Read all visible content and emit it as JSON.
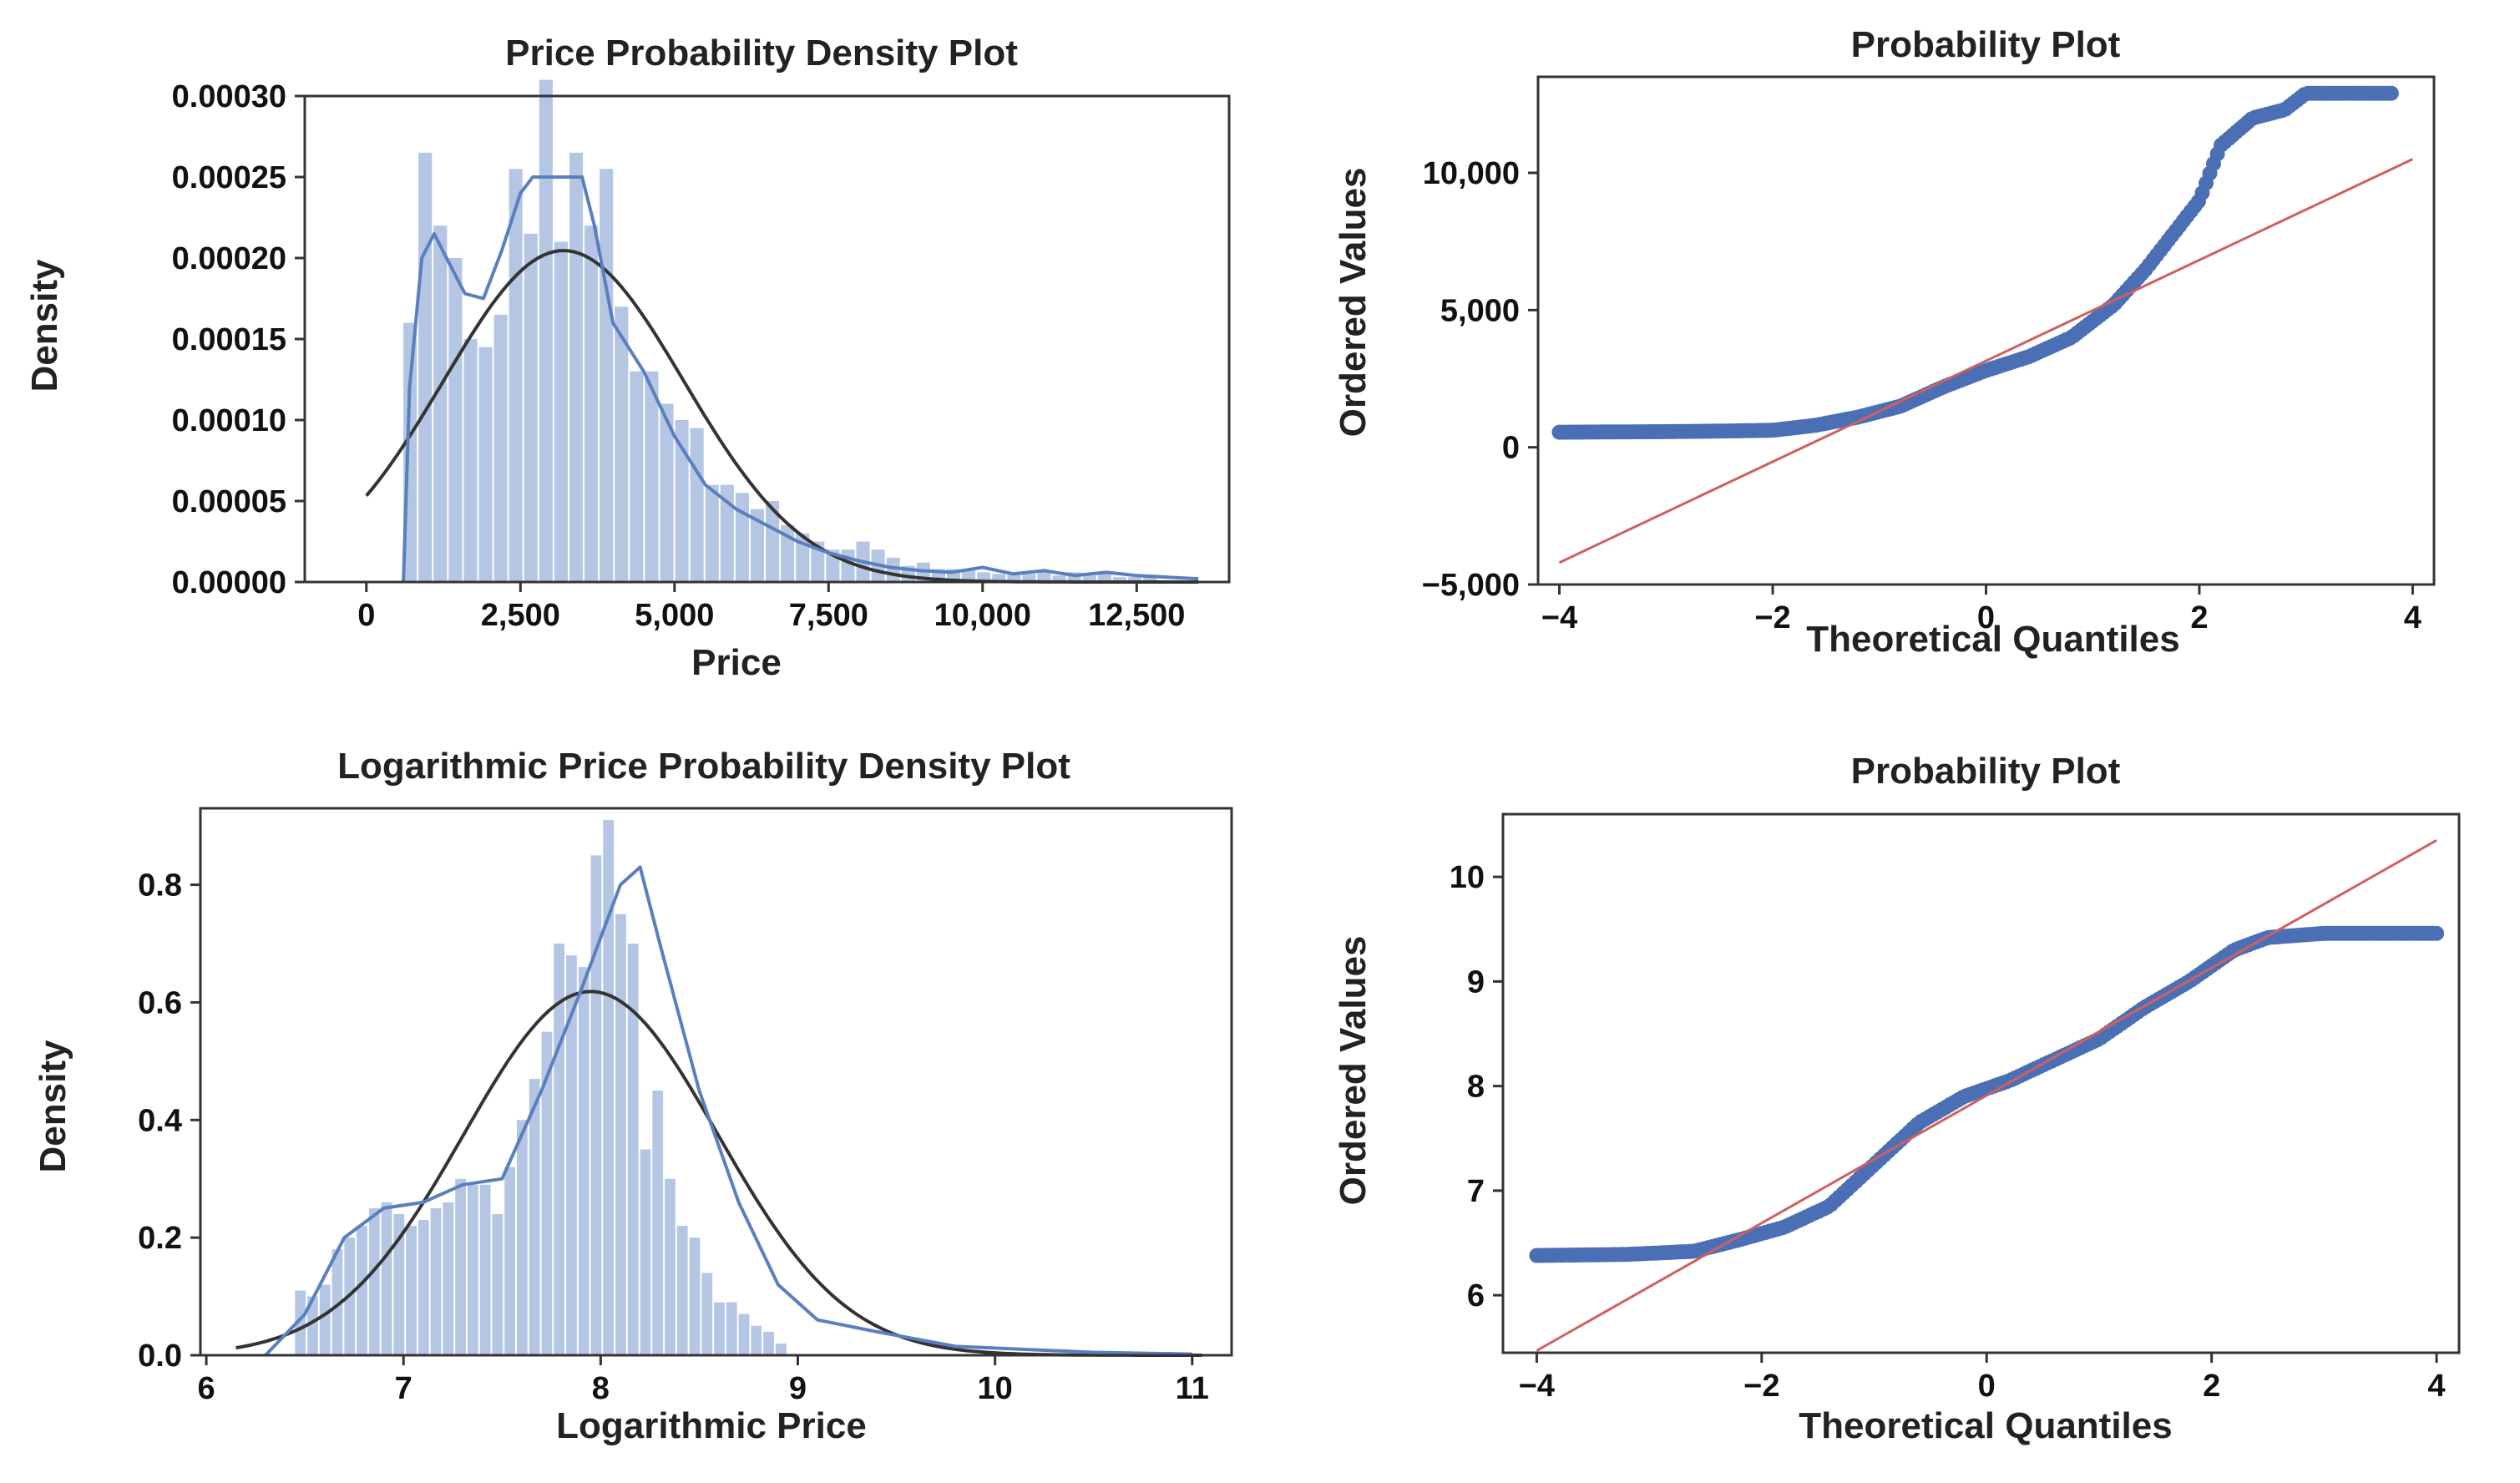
{
  "colors": {
    "hist": "#b4c6e3",
    "kde": "#5a7fbf",
    "normal": "#333333",
    "points": "#4a6fb5",
    "refline": "#d06060"
  },
  "chart_data": [
    {
      "id": "price-density",
      "type": "bar",
      "title": "Price Probability Density Plot",
      "xlabel": "Price",
      "ylabel": "Density",
      "xlim": [
        -1000,
        14000
      ],
      "ylim": [
        0,
        0.0003
      ],
      "xticks": [
        0,
        2500,
        5000,
        7500,
        10000,
        12500
      ],
      "xtick_labels": [
        "0",
        "2,500",
        "5,000",
        "7,500",
        "10,000",
        "12,500"
      ],
      "yticks": [
        0,
        5e-05,
        0.0001,
        0.00015,
        0.0002,
        0.00025,
        0.0003
      ],
      "ytick_labels": [
        "0.00000",
        "0.00005",
        "0.00010",
        "0.00015",
        "0.00020",
        "0.00025",
        "0.00030"
      ],
      "hist_start": 600,
      "bin_width": 245,
      "values": [
        0.00016,
        0.000265,
        0.00022,
        0.0002,
        0.00015,
        0.000145,
        0.000165,
        0.000255,
        0.000215,
        0.00031,
        0.00021,
        0.000265,
        0.00022,
        0.000255,
        0.00017,
        0.00013,
        0.00013,
        0.00011,
        0.0001,
        9.5e-05,
        6e-05,
        6e-05,
        5.5e-05,
        4.5e-05,
        5e-05,
        3.5e-05,
        3e-05,
        2.5e-05,
        2e-05,
        2e-05,
        2.5e-05,
        2e-05,
        1.5e-05,
        1e-05,
        1.2e-05,
        8e-06,
        8e-06,
        8e-06,
        6e-06,
        5e-06,
        6e-06,
        5e-06,
        6e-06,
        4e-06,
        6e-06,
        4e-06,
        5e-06,
        3e-06,
        3e-06,
        3e-06
      ],
      "kde": [
        [
          600,
          0.0
        ],
        [
          700,
          0.00012
        ],
        [
          900,
          0.0002
        ],
        [
          1100,
          0.000215
        ],
        [
          1300,
          0.0002
        ],
        [
          1600,
          0.000178
        ],
        [
          1900,
          0.000175
        ],
        [
          2200,
          0.000205
        ],
        [
          2500,
          0.00024
        ],
        [
          2700,
          0.00025
        ],
        [
          3000,
          0.00025
        ],
        [
          3500,
          0.00025
        ],
        [
          3700,
          0.00022
        ],
        [
          4000,
          0.00016
        ],
        [
          4500,
          0.00013
        ],
        [
          5000,
          9e-05
        ],
        [
          5500,
          6e-05
        ],
        [
          6000,
          4.5e-05
        ],
        [
          6500,
          3.5e-05
        ],
        [
          7000,
          2.5e-05
        ],
        [
          7500,
          1.8e-05
        ],
        [
          8000,
          1.3e-05
        ],
        [
          8500,
          9e-06
        ],
        [
          9000,
          7e-06
        ],
        [
          9500,
          6e-06
        ],
        [
          10000,
          9e-06
        ],
        [
          10500,
          5e-06
        ],
        [
          11000,
          7e-06
        ],
        [
          11500,
          4e-06
        ],
        [
          12000,
          6e-06
        ],
        [
          12500,
          4e-06
        ],
        [
          13000,
          3e-06
        ],
        [
          13500,
          2e-06
        ]
      ],
      "normal_fit": {
        "mean": 3200,
        "std": 1950,
        "x_range": [
          0,
          13500
        ]
      }
    },
    {
      "id": "price-qq",
      "type": "scatter",
      "title": "Probability Plot",
      "xlabel": "Theoretical Quantiles",
      "ylabel": "Ordered Values",
      "xlim": [
        -4.2,
        4.2
      ],
      "ylim": [
        -5000,
        13500
      ],
      "xticks": [
        -4,
        -2,
        0,
        2,
        4
      ],
      "xtick_labels": [
        "−4",
        "−2",
        "0",
        "2",
        "4"
      ],
      "yticks": [
        -5000,
        0,
        5000,
        10000
      ],
      "ytick_labels": [
        "−5,000",
        "0",
        "5,000",
        "10,000"
      ],
      "quantile_curve": [
        [
          -4.0,
          550
        ],
        [
          -3.0,
          570
        ],
        [
          -2.5,
          590
        ],
        [
          -2.0,
          620
        ],
        [
          -1.6,
          800
        ],
        [
          -1.2,
          1100
        ],
        [
          -0.8,
          1500
        ],
        [
          -0.4,
          2200
        ],
        [
          0.0,
          2800
        ],
        [
          0.4,
          3300
        ],
        [
          0.8,
          4000
        ],
        [
          1.2,
          5200
        ],
        [
          1.5,
          6500
        ],
        [
          1.8,
          8000
        ],
        [
          2.0,
          9000
        ],
        [
          2.2,
          11000
        ],
        [
          2.5,
          12000
        ],
        [
          2.8,
          12300
        ],
        [
          3.0,
          12900
        ],
        [
          3.8,
          12900
        ]
      ],
      "reference_line": [
        [
          -4.0,
          -4200
        ],
        [
          4.0,
          10500
        ]
      ]
    },
    {
      "id": "log-density",
      "type": "bar",
      "title": "Logarithmic Price Probability Density Plot",
      "xlabel": "Logarithmic Price",
      "ylabel": "Density",
      "xlim": [
        5.97,
        11.2
      ],
      "ylim": [
        0,
        0.93
      ],
      "xticks": [
        6,
        7,
        8,
        9,
        10,
        11
      ],
      "xtick_labels": [
        "6",
        "7",
        "8",
        "9",
        "10",
        "11"
      ],
      "yticks": [
        0,
        0.2,
        0.4,
        0.6,
        0.8
      ],
      "ytick_labels": [
        "0.0",
        "0.2",
        "0.4",
        "0.6",
        "0.8"
      ],
      "hist_start": 6.45,
      "bin_width": 0.0625,
      "values": [
        0.11,
        0.1,
        0.12,
        0.18,
        0.2,
        0.22,
        0.25,
        0.26,
        0.24,
        0.22,
        0.23,
        0.25,
        0.26,
        0.3,
        0.29,
        0.29,
        0.24,
        0.32,
        0.4,
        0.47,
        0.55,
        0.7,
        0.68,
        0.66,
        0.85,
        0.91,
        0.75,
        0.7,
        0.35,
        0.45,
        0.3,
        0.22,
        0.2,
        0.14,
        0.09,
        0.09,
        0.07,
        0.05,
        0.04,
        0.02
      ],
      "kde": [
        [
          6.3,
          0.0
        ],
        [
          6.5,
          0.07
        ],
        [
          6.7,
          0.2
        ],
        [
          6.9,
          0.25
        ],
        [
          7.1,
          0.26
        ],
        [
          7.3,
          0.29
        ],
        [
          7.5,
          0.3
        ],
        [
          7.7,
          0.45
        ],
        [
          7.9,
          0.62
        ],
        [
          8.1,
          0.8
        ],
        [
          8.2,
          0.83
        ],
        [
          8.3,
          0.7
        ],
        [
          8.5,
          0.45
        ],
        [
          8.7,
          0.26
        ],
        [
          8.9,
          0.12
        ],
        [
          9.1,
          0.06
        ],
        [
          9.4,
          0.04
        ],
        [
          9.8,
          0.015
        ],
        [
          10.5,
          0.005
        ],
        [
          11.0,
          0.002
        ]
      ],
      "normal_fit": {
        "mean": 7.95,
        "std": 0.645,
        "x_range": [
          6.15,
          11.05
        ]
      }
    },
    {
      "id": "log-qq",
      "type": "scatter",
      "title": "Probability Plot",
      "xlabel": "Theoretical Quantiles",
      "ylabel": "Ordered Values",
      "xlim": [
        -4.3,
        4.2
      ],
      "ylim": [
        5.45,
        10.6
      ],
      "xticks": [
        -4,
        -2,
        0,
        2,
        4
      ],
      "xtick_labels": [
        "−4",
        "−2",
        "0",
        "2",
        "4"
      ],
      "yticks": [
        6,
        7,
        8,
        9,
        10
      ],
      "ytick_labels": [
        "6",
        "7",
        "8",
        "9",
        "10"
      ],
      "quantile_curve": [
        [
          -4.0,
          6.38
        ],
        [
          -3.2,
          6.39
        ],
        [
          -2.6,
          6.42
        ],
        [
          -2.2,
          6.53
        ],
        [
          -1.8,
          6.65
        ],
        [
          -1.4,
          6.85
        ],
        [
          -1.0,
          7.25
        ],
        [
          -0.6,
          7.65
        ],
        [
          -0.2,
          7.9
        ],
        [
          0.2,
          8.05
        ],
        [
          0.6,
          8.25
        ],
        [
          1.0,
          8.45
        ],
        [
          1.4,
          8.75
        ],
        [
          1.8,
          9.0
        ],
        [
          2.2,
          9.3
        ],
        [
          2.5,
          9.42
        ],
        [
          3.0,
          9.46
        ],
        [
          4.0,
          9.46
        ]
      ],
      "reference_line": [
        [
          -4.0,
          5.47
        ],
        [
          4.0,
          10.35
        ]
      ]
    }
  ]
}
